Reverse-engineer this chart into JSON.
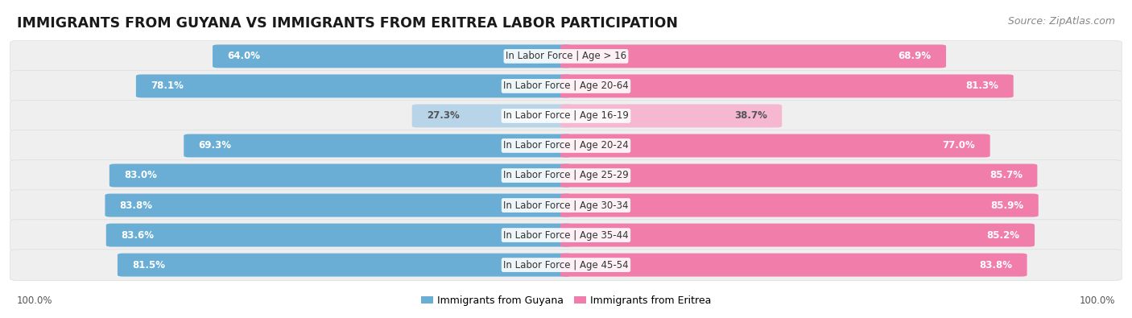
{
  "title": "IMMIGRANTS FROM GUYANA VS IMMIGRANTS FROM ERITREA LABOR PARTICIPATION",
  "source": "Source: ZipAtlas.com",
  "categories": [
    "In Labor Force | Age > 16",
    "In Labor Force | Age 20-64",
    "In Labor Force | Age 16-19",
    "In Labor Force | Age 20-24",
    "In Labor Force | Age 25-29",
    "In Labor Force | Age 30-34",
    "In Labor Force | Age 35-44",
    "In Labor Force | Age 45-54"
  ],
  "guyana_values": [
    64.0,
    78.1,
    27.3,
    69.3,
    83.0,
    83.8,
    83.6,
    81.5
  ],
  "eritrea_values": [
    68.9,
    81.3,
    38.7,
    77.0,
    85.7,
    85.9,
    85.2,
    83.8
  ],
  "guyana_color": "#6aaed6",
  "guyana_color_light": "#b8d4e8",
  "eritrea_color": "#f07daa",
  "eritrea_color_light": "#f5b8d0",
  "row_bg_color": "#efefef",
  "max_value": 100.0,
  "legend_guyana": "Immigrants from Guyana",
  "legend_eritrea": "Immigrants from Eritrea",
  "title_fontsize": 12.5,
  "source_fontsize": 9,
  "value_fontsize": 8.5,
  "category_fontsize": 8.5
}
